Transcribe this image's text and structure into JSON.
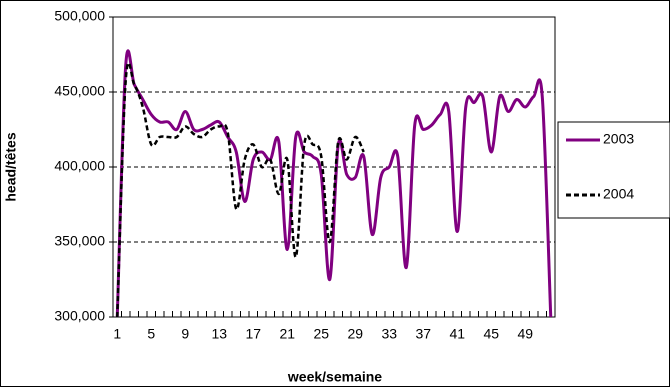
{
  "chart_data": {
    "type": "line",
    "categories": [
      "1",
      null,
      null,
      null,
      "5",
      null,
      null,
      null,
      "9",
      null,
      null,
      null,
      "13",
      null,
      null,
      null,
      "17",
      null,
      null,
      null,
      "21",
      null,
      null,
      null,
      "25",
      null,
      null,
      null,
      "29",
      null,
      null,
      null,
      "33",
      null,
      null,
      null,
      "37",
      null,
      null,
      null,
      "41",
      null,
      null,
      null,
      "45",
      null,
      null,
      null,
      "49",
      null,
      null,
      null
    ],
    "series": [
      {
        "name": "2003",
        "color": "#800080",
        "dash": false,
        "values": [
          300000,
          468000,
          455000,
          445000,
          435000,
          430000,
          430000,
          425000,
          437000,
          425000,
          425000,
          428000,
          430000,
          420000,
          410000,
          377000,
          405000,
          410000,
          405000,
          417000,
          345000,
          420000,
          410000,
          407000,
          395000,
          325000,
          415000,
          395000,
          393000,
          407000,
          355000,
          393000,
          400000,
          407000,
          333000,
          428000,
          425000,
          428000,
          435000,
          437000,
          357000,
          440000,
          443000,
          447000,
          410000,
          447000,
          437000,
          445000,
          440000,
          447000,
          447000,
          300000
        ]
      },
      {
        "name": "2004",
        "color": "#000000",
        "dash": true,
        "values": [
          300000,
          458000,
          455000,
          440000,
          415000,
          420000,
          420000,
          420000,
          427000,
          422000,
          420000,
          425000,
          427000,
          423000,
          372000,
          405000,
          415000,
          400000,
          405000,
          382000,
          405000,
          340000,
          415000,
          415000,
          407000,
          350000,
          417000,
          405000,
          420000,
          410000,
          null,
          null,
          null,
          null,
          null,
          null,
          null,
          null,
          null,
          null,
          null,
          null,
          null,
          null,
          null,
          null,
          null,
          null,
          null,
          null,
          null,
          null
        ]
      }
    ],
    "xlabel": "week/semaine",
    "ylabel": "head/têtes",
    "ylim": [
      300000,
      500000
    ],
    "yticks": [
      {
        "value": 300000,
        "label": "300,000"
      },
      {
        "value": 350000,
        "label": "350,000"
      },
      {
        "value": 400000,
        "label": "400,000"
      },
      {
        "value": 450000,
        "label": "450,000"
      },
      {
        "value": 500000,
        "label": "500,000"
      }
    ],
    "grid": true,
    "smooth": true,
    "legend": "right"
  }
}
